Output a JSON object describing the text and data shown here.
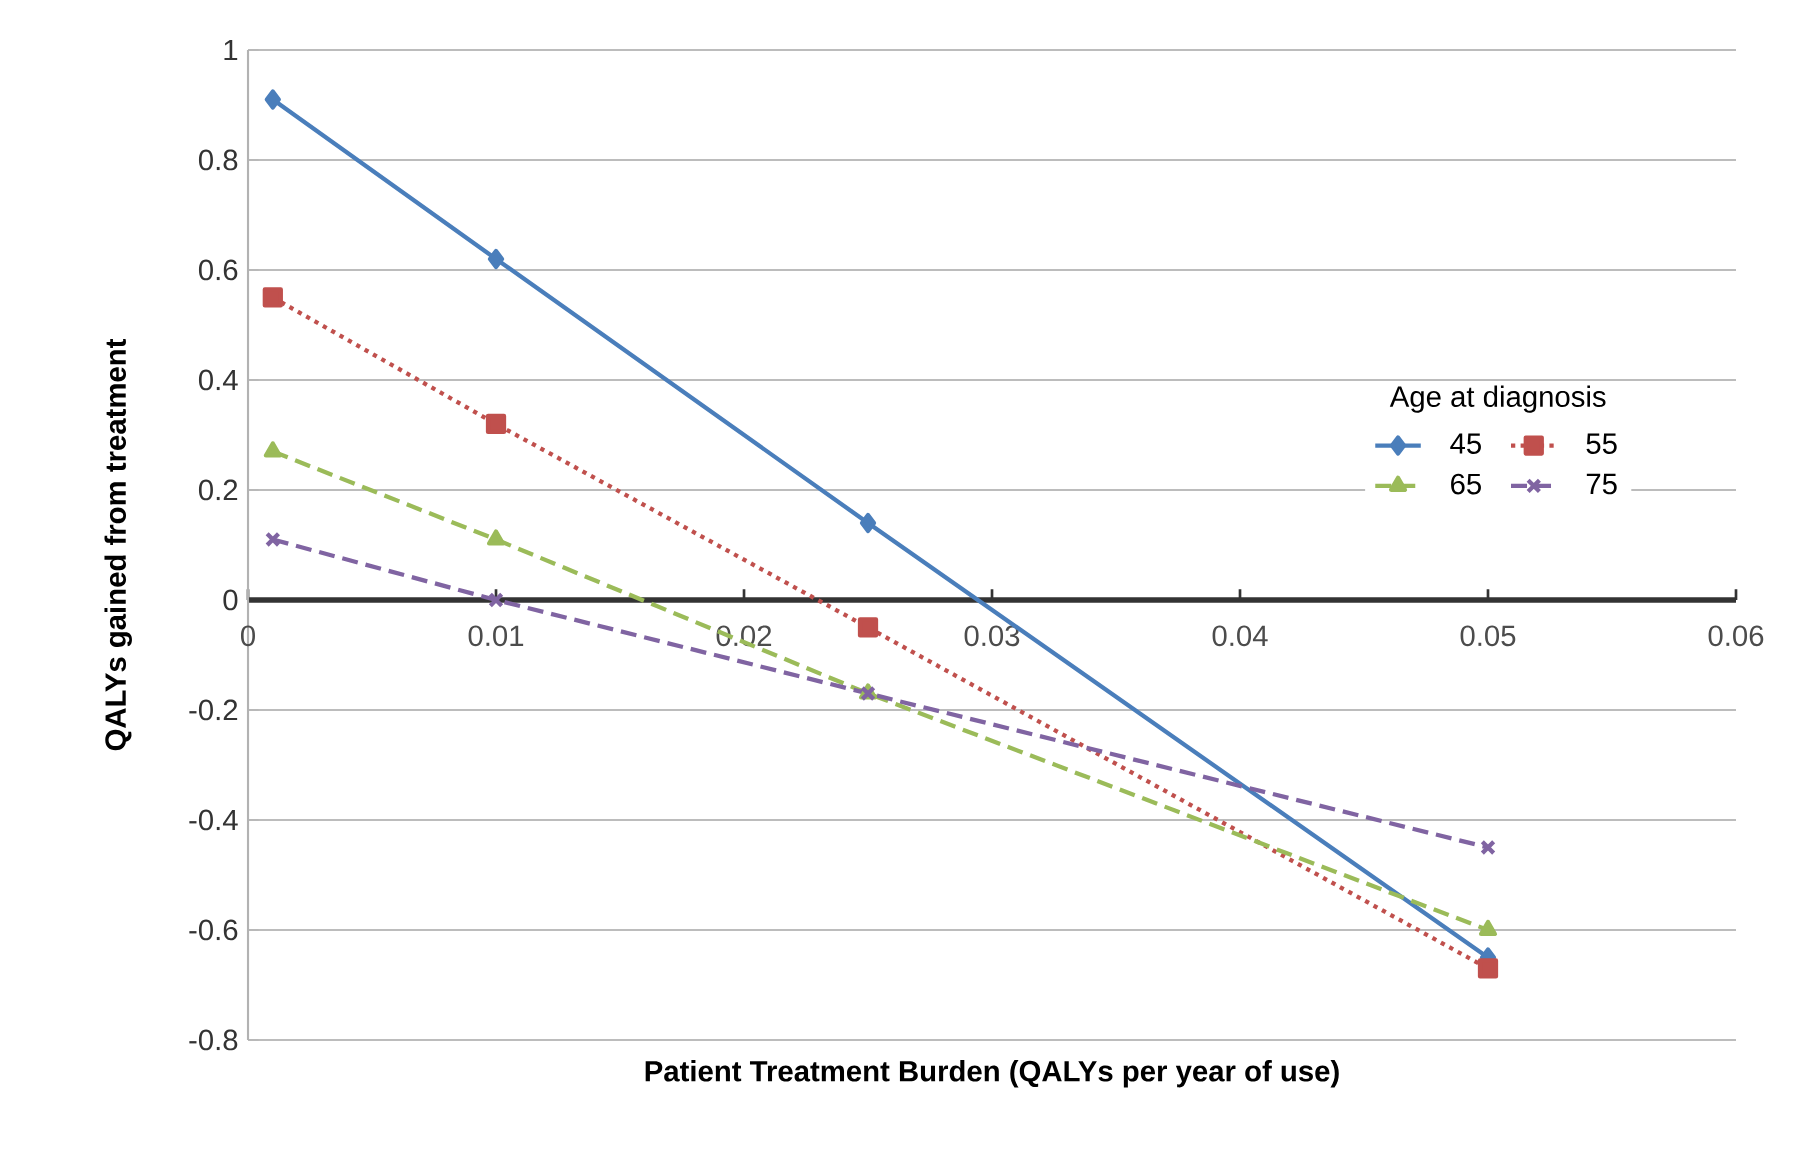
{
  "chart_data": {
    "type": "line",
    "xlabel": "Patient Treatment Burden  (QALYs per year of use)",
    "ylabel": "QALYs gained from treatment",
    "legend_title": "Age at diagnosis",
    "x": [
      0.001,
      0.01,
      0.025,
      0.05
    ],
    "series": [
      {
        "name": "45",
        "color": "#4a7ebb",
        "marker": "diamond",
        "line_style": "solid",
        "values": [
          0.91,
          0.62,
          0.14,
          -0.65
        ]
      },
      {
        "name": "55",
        "color": "#c0504d",
        "marker": "square",
        "line_style": "dotted",
        "values": [
          0.55,
          0.32,
          -0.05,
          -0.67
        ]
      },
      {
        "name": "65",
        "color": "#9bbb59",
        "marker": "triangle",
        "line_style": "dashed",
        "values": [
          0.27,
          0.11,
          -0.17,
          -0.6
        ]
      },
      {
        "name": "75",
        "color": "#8064a2",
        "marker": "cross",
        "line_style": "dashed",
        "values": [
          0.11,
          0.0,
          -0.17,
          -0.45
        ]
      }
    ],
    "xlim": [
      0,
      0.06
    ],
    "xticks": [
      0,
      0.01,
      0.02,
      0.03,
      0.04,
      0.05,
      0.06
    ],
    "ylim": [
      -0.8,
      1
    ],
    "yticks": [
      -0.8,
      -0.6,
      -0.4,
      -0.2,
      0,
      0.2,
      0.4,
      0.6,
      0.8,
      1
    ],
    "grid": "y",
    "legend": "right"
  }
}
